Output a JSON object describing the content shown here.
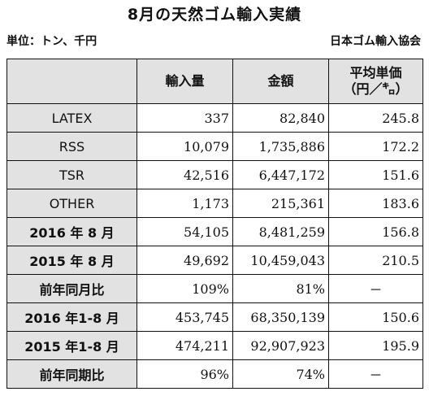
{
  "title": "8月の天然ゴム輸入実績",
  "unit_label": "単位：トン、千円",
  "source": "日本ゴム輸入協会",
  "columns": {
    "volume": "輸入量",
    "amount": "金額",
    "price_line1": "平均単価",
    "price_line2": "（円／㌔）"
  },
  "rows": [
    {
      "label": "LATEX",
      "volume": "337",
      "amount": "82,840",
      "price": "245.8"
    },
    {
      "label": "RSS",
      "volume": "10,079",
      "amount": "1,735,886",
      "price": "172.2"
    },
    {
      "label": "TSR",
      "volume": "42,516",
      "amount": "6,447,172",
      "price": "151.6"
    },
    {
      "label": "OTHER",
      "volume": "1,173",
      "amount": "215,361",
      "price": "183.6"
    },
    {
      "label": "2016 年 8 月",
      "volume": "54,105",
      "amount": "8,481,259",
      "price": "156.8"
    },
    {
      "label": "2015 年 8 月",
      "volume": "49,692",
      "amount": "10,459,043",
      "price": "210.5"
    },
    {
      "label": "前年同月比",
      "volume": "109%",
      "amount": "81%",
      "price": "－"
    },
    {
      "label": "2016 年1-8 月",
      "volume": "453,745",
      "amount": "68,350,139",
      "price": "150.6"
    },
    {
      "label": "2015 年1-8 月",
      "volume": "474,211",
      "amount": "92,907,923",
      "price": "195.9"
    },
    {
      "label": "前年同期比",
      "volume": "96%",
      "amount": "74%",
      "price": "－"
    }
  ]
}
